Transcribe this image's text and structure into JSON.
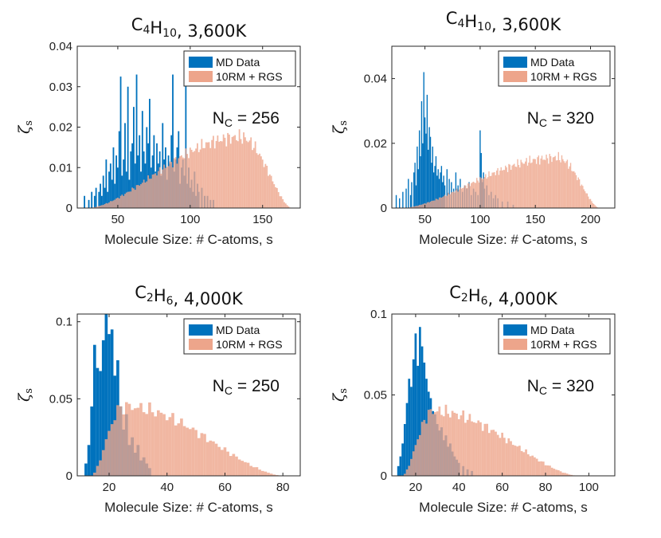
{
  "chart_data": [
    {
      "type": "bar",
      "title_parts": [
        [
          "C",
          ""
        ],
        [
          "4",
          "sub"
        ],
        [
          "H",
          ""
        ],
        [
          "10",
          "sub"
        ],
        [
          ", 3,600K",
          ""
        ]
      ],
      "title": "C4H10, 3,600K",
      "xlabel": "Molecule Size: # C-atoms, s",
      "ylabel": "ζ",
      "ylabel_sub": "s",
      "xlim": [
        22,
        176
      ],
      "ylim": [
        0,
        0.04
      ],
      "xticks": [
        50,
        100,
        150
      ],
      "xtick_labels": [
        "50",
        "100",
        "150"
      ],
      "yticks": [
        0,
        0.01,
        0.02,
        0.03,
        0.04
      ],
      "ytick_labels": [
        "0",
        "0.01",
        "0.02",
        "0.03",
        "0.04"
      ],
      "annotation_main": "N",
      "annotation_sub": "C",
      "annotation_rest": " = 256",
      "legend": {
        "position": "top-right",
        "entries": [
          {
            "label": "MD Data",
            "color": "#0072BD"
          },
          {
            "label": "10RM + RGS",
            "color": "#EDA58B"
          }
        ]
      },
      "series": [
        {
          "name": "MD Data",
          "color": "#0072BD",
          "bin_width": 1,
          "x": [
            27,
            30,
            32,
            34,
            35,
            37,
            38,
            39,
            40,
            41,
            42,
            43,
            44,
            45,
            46,
            47,
            48,
            49,
            50,
            51,
            52,
            53,
            54,
            55,
            56,
            57,
            58,
            59,
            60,
            61,
            62,
            63,
            64,
            65,
            66,
            67,
            68,
            69,
            70,
            71,
            72,
            73,
            74,
            75,
            76,
            77,
            78,
            79,
            80,
            81,
            82,
            83,
            84,
            85,
            86,
            87,
            88,
            89,
            90,
            91,
            92,
            93,
            94,
            95,
            96,
            97,
            98,
            99,
            100,
            101,
            102,
            103,
            104,
            105,
            106,
            108,
            110,
            112,
            114,
            116
          ],
          "values": [
            0.003,
            0.002,
            0.004,
            0.003,
            0.005,
            0.004,
            0.006,
            0.003,
            0.008,
            0.005,
            0.012,
            0.004,
            0.009,
            0.011,
            0.007,
            0.015,
            0.006,
            0.013,
            0.01,
            0.019,
            0.0325,
            0.008,
            0.012,
            0.021,
            0.009,
            0.03,
            0.007,
            0.014,
            0.016,
            0.025,
            0.011,
            0.033,
            0.013,
            0.018,
            0.009,
            0.024,
            0.014,
            0.011,
            0.02,
            0.016,
            0.027,
            0.01,
            0.013,
            0.018,
            0.009,
            0.016,
            0.011,
            0.014,
            0.008,
            0.021,
            0.012,
            0.015,
            0.007,
            0.013,
            0.011,
            0.018,
            0.033,
            0.009,
            0.012,
            0.015,
            0.019,
            0.006,
            0.01,
            0.012,
            0.008,
            0.032,
            0.006,
            0.01,
            0.005,
            0.007,
            0.004,
            0.009,
            0.003,
            0.006,
            0.004,
            0.005,
            0.003,
            0.003,
            0.002,
            0.002
          ]
        },
        {
          "name": "10RM + RGS",
          "color": "#EDA58B",
          "bin_width": 1,
          "model": {
            "kind": "skewed-bell",
            "start": 30,
            "peak": 135,
            "end": 170,
            "peak_value": 0.0175
          }
        }
      ]
    },
    {
      "type": "bar",
      "title_parts": [
        [
          "C",
          ""
        ],
        [
          "4",
          "sub"
        ],
        [
          "H",
          ""
        ],
        [
          "10",
          "sub"
        ],
        [
          ", 3,600K",
          ""
        ]
      ],
      "title": "C4H10, 3,600K",
      "xlabel": "Molecule Size: # C-atoms, s",
      "ylabel": "ζ",
      "ylabel_sub": "s",
      "xlim": [
        20,
        222
      ],
      "ylim": [
        0,
        0.05
      ],
      "xticks": [
        50,
        100,
        150,
        200
      ],
      "xtick_labels": [
        "50",
        "100",
        "150",
        "200"
      ],
      "yticks": [
        0,
        0.02,
        0.04
      ],
      "ytick_labels": [
        "0",
        "0.02",
        "0.04"
      ],
      "annotation_main": "N",
      "annotation_sub": "C",
      "annotation_rest": " = 320",
      "legend": {
        "position": "top-right",
        "entries": [
          {
            "label": "MD Data",
            "color": "#0072BD"
          },
          {
            "label": "10RM + RGS",
            "color": "#EDA58B"
          }
        ]
      },
      "series": [
        {
          "name": "MD Data",
          "color": "#0072BD",
          "bin_width": 1,
          "x": [
            24,
            27,
            30,
            33,
            35,
            37,
            38,
            40,
            41,
            42,
            43,
            44,
            45,
            46,
            47,
            48,
            49,
            50,
            51,
            52,
            53,
            54,
            55,
            56,
            57,
            58,
            59,
            60,
            61,
            62,
            63,
            64,
            65,
            66,
            67,
            68,
            70,
            72,
            74,
            76,
            78,
            80,
            82,
            84,
            86,
            88,
            90,
            92,
            94,
            96,
            98,
            100,
            101,
            102,
            103,
            104,
            106,
            108,
            110,
            112,
            114,
            116,
            120,
            125,
            130
          ],
          "values": [
            0.004,
            0.003,
            0.005,
            0.006,
            0.009,
            0.004,
            0.008,
            0.011,
            0.014,
            0.007,
            0.019,
            0.012,
            0.024,
            0.016,
            0.033,
            0.02,
            0.042,
            0.028,
            0.023,
            0.035,
            0.018,
            0.025,
            0.022,
            0.014,
            0.019,
            0.011,
            0.013,
            0.016,
            0.01,
            0.012,
            0.009,
            0.011,
            0.013,
            0.008,
            0.01,
            0.007,
            0.012,
            0.009,
            0.008,
            0.006,
            0.011,
            0.007,
            0.009,
            0.005,
            0.007,
            0.006,
            0.008,
            0.004,
            0.006,
            0.005,
            0.004,
            0.024,
            0.017,
            0.008,
            0.011,
            0.006,
            0.007,
            0.004,
            0.005,
            0.003,
            0.004,
            0.003,
            0.002,
            0.002,
            0.001
          ]
        },
        {
          "name": "10RM + RGS",
          "color": "#EDA58B",
          "bin_width": 1,
          "model": {
            "kind": "skewed-bell",
            "start": 30,
            "peak": 170,
            "end": 208,
            "peak_value": 0.0155
          }
        }
      ]
    },
    {
      "type": "bar",
      "title_parts": [
        [
          "C",
          ""
        ],
        [
          "2",
          "sub"
        ],
        [
          "H",
          ""
        ],
        [
          "6",
          "sub"
        ],
        [
          ", 4,000K",
          ""
        ]
      ],
      "title": "C2H6, 4,000K",
      "xlabel": "Molecule Size: # C-atoms, s",
      "ylabel": "ζ",
      "ylabel_sub": "s",
      "xlim": [
        9,
        86
      ],
      "ylim": [
        0,
        0.105
      ],
      "xticks": [
        20,
        40,
        60,
        80
      ],
      "xtick_labels": [
        "20",
        "40",
        "60",
        "80"
      ],
      "yticks": [
        0,
        0.05,
        0.1
      ],
      "ytick_labels": [
        "0",
        "0.05",
        "0.1"
      ],
      "annotation_main": "N",
      "annotation_sub": "C",
      "annotation_rest": " = 250",
      "legend": {
        "position": "top-right",
        "entries": [
          {
            "label": "MD Data",
            "color": "#0072BD"
          },
          {
            "label": "10RM + RGS",
            "color": "#EDA58B"
          }
        ]
      },
      "series": [
        {
          "name": "MD Data",
          "color": "#0072BD",
          "bin_width": 1,
          "x": [
            12,
            13,
            14,
            15,
            16,
            17,
            18,
            19,
            20,
            21,
            22,
            23,
            24,
            25,
            26,
            27,
            28,
            29,
            30,
            31,
            32,
            33,
            34
          ],
          "values": [
            0.008,
            0.02,
            0.045,
            0.085,
            0.07,
            0.068,
            0.088,
            0.105,
            0.092,
            0.095,
            0.065,
            0.075,
            0.045,
            0.03,
            0.04,
            0.02,
            0.025,
            0.015,
            0.02,
            0.01,
            0.012,
            0.008,
            0.005
          ]
        },
        {
          "name": "10RM + RGS",
          "color": "#EDA58B",
          "bin_width": 1,
          "model": {
            "kind": "skewed-bell",
            "start": 14,
            "peak": 25,
            "end": 80,
            "peak_value": 0.045
          }
        }
      ]
    },
    {
      "type": "bar",
      "title_parts": [
        [
          "C",
          ""
        ],
        [
          "2",
          "sub"
        ],
        [
          "H",
          ""
        ],
        [
          "6",
          "sub"
        ],
        [
          ", 4,000K",
          ""
        ]
      ],
      "title": "C2H6, 4,000K",
      "xlabel": "Molecule Size: # C-atoms, s",
      "ylabel": "ζ",
      "ylabel_sub": "s",
      "xlim": [
        9,
        112
      ],
      "ylim": [
        0,
        0.1
      ],
      "xticks": [
        20,
        40,
        60,
        80,
        100
      ],
      "xtick_labels": [
        "20",
        "40",
        "60",
        "80",
        "100"
      ],
      "yticks": [
        0,
        0.05,
        0.1
      ],
      "ytick_labels": [
        "0",
        "0.05",
        "0.1"
      ],
      "annotation_main": "N",
      "annotation_sub": "C",
      "annotation_rest": " = 320",
      "legend": {
        "position": "top-right",
        "entries": [
          {
            "label": "MD Data",
            "color": "#0072BD"
          },
          {
            "label": "10RM + RGS",
            "color": "#EDA58B"
          }
        ]
      },
      "series": [
        {
          "name": "MD Data",
          "color": "#0072BD",
          "bin_width": 1,
          "x": [
            12,
            13,
            14,
            15,
            16,
            17,
            18,
            19,
            20,
            21,
            22,
            23,
            24,
            25,
            26,
            27,
            28,
            29,
            30,
            31,
            32,
            33,
            34,
            35,
            36,
            37,
            38,
            39,
            40,
            42,
            44,
            46
          ],
          "values": [
            0.006,
            0.012,
            0.02,
            0.032,
            0.045,
            0.06,
            0.055,
            0.072,
            0.088,
            0.068,
            0.092,
            0.08,
            0.07,
            0.06,
            0.052,
            0.048,
            0.04,
            0.038,
            0.032,
            0.028,
            0.03,
            0.022,
            0.025,
            0.018,
            0.02,
            0.015,
            0.012,
            0.01,
            0.008,
            0.006,
            0.004,
            0.003
          ]
        },
        {
          "name": "10RM + RGS",
          "color": "#EDA58B",
          "bin_width": 1,
          "model": {
            "kind": "skewed-bell",
            "start": 14,
            "peak": 28,
            "end": 95,
            "peak_value": 0.04
          }
        }
      ]
    }
  ]
}
